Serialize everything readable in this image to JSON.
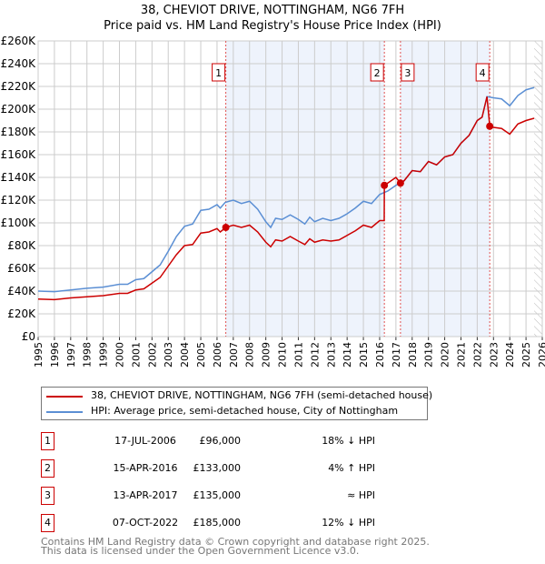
{
  "chart_data": {
    "type": "line",
    "title": "38, CHEVIOT DRIVE, NOTTINGHAM, NG6 7FH",
    "subtitle": "Price paid vs. HM Land Registry's House Price Index (HPI)",
    "xlim": [
      1995,
      2026
    ],
    "ylim": [
      0,
      260000
    ],
    "x_ticks": [
      "1995",
      "1996",
      "1997",
      "1998",
      "1999",
      "2000",
      "2001",
      "2002",
      "2003",
      "2004",
      "2005",
      "2006",
      "2007",
      "2008",
      "2009",
      "2010",
      "2011",
      "2012",
      "2013",
      "2014",
      "2015",
      "2016",
      "2017",
      "2018",
      "2019",
      "2020",
      "2021",
      "2022",
      "2023",
      "2024",
      "2025",
      "2026"
    ],
    "y_ticks": [
      {
        "v": 0,
        "l": "£0"
      },
      {
        "v": 20000,
        "l": "£20K"
      },
      {
        "v": 40000,
        "l": "£40K"
      },
      {
        "v": 60000,
        "l": "£60K"
      },
      {
        "v": 80000,
        "l": "£80K"
      },
      {
        "v": 100000,
        "l": "£100K"
      },
      {
        "v": 120000,
        "l": "£120K"
      },
      {
        "v": 140000,
        "l": "£140K"
      },
      {
        "v": 160000,
        "l": "£160K"
      },
      {
        "v": 180000,
        "l": "£180K"
      },
      {
        "v": 200000,
        "l": "£200K"
      },
      {
        "v": 220000,
        "l": "£220K"
      },
      {
        "v": 240000,
        "l": "£240K"
      },
      {
        "v": 260000,
        "l": "£260K"
      }
    ],
    "grid": true,
    "shaded_ranges": [
      [
        2006.54,
        2016.29
      ],
      [
        2017.28,
        2022.77
      ]
    ],
    "forecast_start": 2025.5,
    "series": [
      {
        "name": "38, CHEVIOT DRIVE, NOTTINGHAM, NG6 7FH (semi-detached house)",
        "color": "#cc0000",
        "points": [
          [
            1995,
            33
          ],
          [
            1996,
            32.5
          ],
          [
            1997,
            34
          ],
          [
            1998,
            35
          ],
          [
            1999,
            36
          ],
          [
            2000,
            38
          ],
          [
            2000.5,
            38
          ],
          [
            2001,
            41
          ],
          [
            2001.5,
            42
          ],
          [
            2002,
            47
          ],
          [
            2002.5,
            52
          ],
          [
            2003,
            62
          ],
          [
            2003.5,
            72
          ],
          [
            2004,
            80
          ],
          [
            2004.5,
            81
          ],
          [
            2005,
            91
          ],
          [
            2005.5,
            92
          ],
          [
            2006,
            95
          ],
          [
            2006.2,
            92
          ],
          [
            2006.54,
            96
          ],
          [
            2007,
            98
          ],
          [
            2007.5,
            96
          ],
          [
            2008,
            98
          ],
          [
            2008.5,
            92
          ],
          [
            2009,
            83
          ],
          [
            2009.3,
            79
          ],
          [
            2009.6,
            85
          ],
          [
            2010,
            84
          ],
          [
            2010.5,
            88
          ],
          [
            2011,
            84
          ],
          [
            2011.4,
            81
          ],
          [
            2011.7,
            86
          ],
          [
            2012,
            83
          ],
          [
            2012.5,
            85
          ],
          [
            2013,
            84
          ],
          [
            2013.5,
            85
          ],
          [
            2014,
            89
          ],
          [
            2014.5,
            93
          ],
          [
            2015,
            98
          ],
          [
            2015.5,
            96
          ],
          [
            2016,
            102
          ],
          [
            2016.28,
            102
          ],
          [
            2016.29,
            133
          ],
          [
            2016.6,
            136
          ],
          [
            2017,
            140
          ],
          [
            2017.28,
            135
          ],
          [
            2017.5,
            137
          ],
          [
            2018,
            146
          ],
          [
            2018.5,
            145
          ],
          [
            2019,
            154
          ],
          [
            2019.5,
            151
          ],
          [
            2020,
            158
          ],
          [
            2020.5,
            160
          ],
          [
            2021,
            170
          ],
          [
            2021.5,
            177
          ],
          [
            2022,
            190
          ],
          [
            2022.3,
            193
          ],
          [
            2022.6,
            211
          ],
          [
            2022.77,
            185
          ],
          [
            2023,
            184
          ],
          [
            2023.5,
            183
          ],
          [
            2024,
            178
          ],
          [
            2024.5,
            187
          ],
          [
            2025,
            190
          ],
          [
            2025.5,
            192
          ]
        ]
      },
      {
        "name": "HPI: Average price, semi-detached house, City of Nottingham",
        "color": "#5b8fd4",
        "points": [
          [
            1995,
            40
          ],
          [
            1996,
            39.5
          ],
          [
            1997,
            41
          ],
          [
            1998,
            42.5
          ],
          [
            1999,
            43.5
          ],
          [
            2000,
            46
          ],
          [
            2000.5,
            46
          ],
          [
            2001,
            50
          ],
          [
            2001.5,
            51
          ],
          [
            2002,
            57
          ],
          [
            2002.5,
            63
          ],
          [
            2003,
            75
          ],
          [
            2003.5,
            88
          ],
          [
            2004,
            97
          ],
          [
            2004.5,
            99
          ],
          [
            2005,
            111
          ],
          [
            2005.5,
            112
          ],
          [
            2006,
            116
          ],
          [
            2006.2,
            113
          ],
          [
            2006.5,
            118
          ],
          [
            2007,
            120
          ],
          [
            2007.5,
            117
          ],
          [
            2008,
            119
          ],
          [
            2008.5,
            112
          ],
          [
            2009,
            101
          ],
          [
            2009.3,
            96
          ],
          [
            2009.6,
            104
          ],
          [
            2010,
            103
          ],
          [
            2010.5,
            107
          ],
          [
            2011,
            103
          ],
          [
            2011.4,
            99
          ],
          [
            2011.7,
            105
          ],
          [
            2012,
            101
          ],
          [
            2012.5,
            104
          ],
          [
            2013,
            102
          ],
          [
            2013.5,
            104
          ],
          [
            2014,
            108
          ],
          [
            2014.5,
            113
          ],
          [
            2015,
            119
          ],
          [
            2015.5,
            117
          ],
          [
            2016,
            125
          ],
          [
            2016.5,
            128
          ],
          [
            2017,
            133
          ],
          [
            2017.5,
            137
          ],
          [
            2018,
            146
          ],
          [
            2018.5,
            145
          ],
          [
            2019,
            154
          ],
          [
            2019.5,
            151
          ],
          [
            2020,
            158
          ],
          [
            2020.5,
            160
          ],
          [
            2021,
            170
          ],
          [
            2021.5,
            177
          ],
          [
            2022,
            190
          ],
          [
            2022.3,
            193
          ],
          [
            2022.6,
            211
          ],
          [
            2023,
            210
          ],
          [
            2023.5,
            209
          ],
          [
            2024,
            203
          ],
          [
            2024.5,
            212
          ],
          [
            2025,
            217
          ],
          [
            2025.5,
            219
          ]
        ]
      }
    ],
    "sales": [
      {
        "n": "1",
        "x": 2006.54,
        "y": 96000
      },
      {
        "n": "2",
        "x": 2016.29,
        "y": 133000
      },
      {
        "n": "3",
        "x": 2017.28,
        "y": 135000
      },
      {
        "n": "4",
        "x": 2022.77,
        "y": 185000
      }
    ]
  },
  "legend": {
    "red": "38, CHEVIOT DRIVE, NOTTINGHAM, NG6 7FH (semi-detached house)",
    "blue": "HPI: Average price, semi-detached house, City of Nottingham"
  },
  "table": [
    {
      "n": "1",
      "date": "17-JUL-2006",
      "price": "£96,000",
      "hpi": "18% ↓ HPI"
    },
    {
      "n": "2",
      "date": "15-APR-2016",
      "price": "£133,000",
      "hpi": "4% ↑ HPI"
    },
    {
      "n": "3",
      "date": "13-APR-2017",
      "price": "£135,000",
      "hpi": "≈ HPI"
    },
    {
      "n": "4",
      "date": "07-OCT-2022",
      "price": "£185,000",
      "hpi": "12% ↓ HPI"
    }
  ],
  "footer": {
    "line1": "Contains HM Land Registry data © Crown copyright and database right 2025.",
    "line2": "This data is licensed under the Open Government Licence v3.0."
  }
}
